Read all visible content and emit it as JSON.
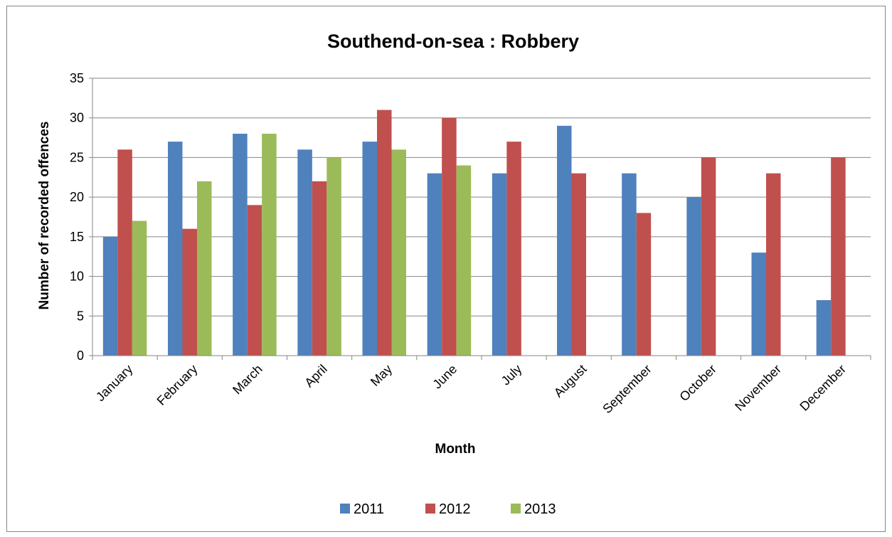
{
  "chart_data": {
    "type": "bar",
    "title": "Southend-on-sea : Robbery",
    "xlabel": "Month",
    "ylabel": "Number of recorded offences",
    "ylim": [
      0,
      35
    ],
    "yticks": [
      "0",
      "5",
      "10",
      "15",
      "20",
      "25",
      "30",
      "35"
    ],
    "grid": true,
    "legend_position": "bottom",
    "categories": [
      "January",
      "February",
      "March",
      "April",
      "May",
      "June",
      "July",
      "August",
      "September",
      "October",
      "November",
      "December"
    ],
    "series": [
      {
        "name": "2011",
        "color": "#4F81BD",
        "values": [
          15,
          27,
          28,
          26,
          27,
          23,
          23,
          29,
          23,
          20,
          13,
          7
        ]
      },
      {
        "name": "2012",
        "color": "#C0504D",
        "values": [
          26,
          16,
          19,
          22,
          31,
          30,
          27,
          23,
          18,
          25,
          23,
          25
        ]
      },
      {
        "name": "2013",
        "color": "#9BBB59",
        "values": [
          17,
          22,
          28,
          25,
          26,
          24,
          null,
          null,
          null,
          null,
          null,
          null
        ]
      }
    ]
  }
}
